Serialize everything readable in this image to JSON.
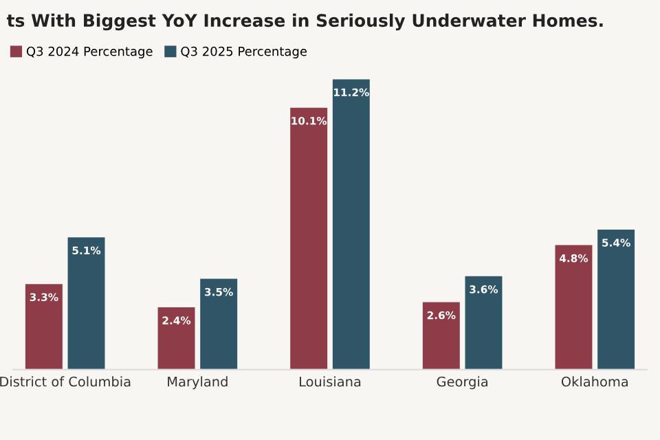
{
  "chart_data": {
    "type": "bar",
    "title": "ts With Biggest YoY Increase in Seriously Underwater Homes.",
    "categories": [
      "District of Columbia",
      "Maryland",
      "Louisiana",
      "Georgia",
      "Oklahoma"
    ],
    "series": [
      {
        "name": "Q3 2024 Percentage",
        "color": "#8e3d48",
        "values": [
          3.3,
          2.4,
          10.1,
          2.6,
          4.8
        ],
        "value_labels": [
          "3.3%",
          "2.4%",
          "10.1%",
          "2.6%",
          "4.8%"
        ]
      },
      {
        "name": "Q3 2025 Percentage",
        "color": "#2f5566",
        "values": [
          5.1,
          3.5,
          11.2,
          3.6,
          5.4
        ],
        "value_labels": [
          "5.1%",
          "3.5%",
          "11.2%",
          "3.6%",
          "5.4%"
        ]
      }
    ],
    "legend": "top left",
    "grid": false
  }
}
